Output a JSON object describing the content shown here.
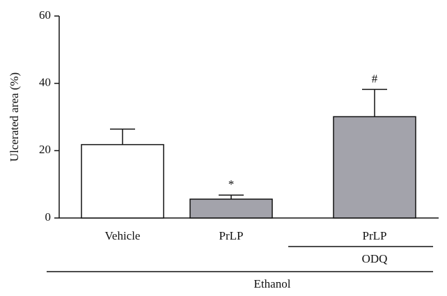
{
  "chart_data": {
    "type": "bar",
    "y_label": "Ulcerated area (%)",
    "categories": [
      "Vehicle",
      "PrLP",
      "PrLP"
    ],
    "values": [
      21.8,
      5.6,
      30.1
    ],
    "errors": [
      4.6,
      1.2,
      8.1
    ],
    "colors": [
      "#ffffff",
      "#a3a3ab",
      "#a3a3ab"
    ],
    "annotations": [
      null,
      "*",
      "#"
    ],
    "groups": [
      {
        "label": "ODQ",
        "categories": [
          2
        ]
      },
      {
        "label": "Ethanol",
        "categories": [
          0,
          1,
          2
        ]
      }
    ],
    "ylim": [
      0,
      60
    ],
    "yticks": [
      0,
      20,
      40,
      60
    ]
  }
}
